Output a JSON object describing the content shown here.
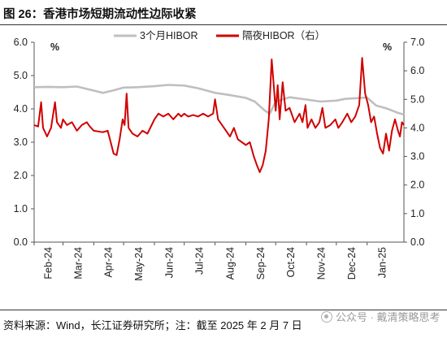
{
  "title": "图 26：香港市场短期流动性边际收紧",
  "source": "资料来源：Wind，长江证券研究所；注：截至 2025 年 2 月 7 日",
  "watermark": "公众号 · 戴清策略思考",
  "chart_data": {
    "type": "line",
    "y_left": {
      "label": "%",
      "min": 0,
      "max": 6,
      "ticks": [
        "0.0",
        "1.0",
        "2.0",
        "3.0",
        "4.0",
        "5.0",
        "6.0"
      ]
    },
    "y_right": {
      "label": "%",
      "min": 0,
      "max": 7,
      "ticks": [
        "0.0",
        "1.0",
        "2.0",
        "3.0",
        "4.0",
        "5.0",
        "6.0",
        "7.0"
      ]
    },
    "x_ticks": [
      "Feb-24",
      "Mar-24",
      "Apr-24",
      "May-24",
      "Jun-24",
      "Jul-24",
      "Aug-24",
      "Sep-24",
      "Oct-24",
      "Nov-24",
      "Dec-24",
      "Jan-25"
    ],
    "grid": false,
    "legend_position": "top",
    "series": [
      {
        "name": "3个月HIBOR",
        "axis": "left",
        "color": "#bfbfbf",
        "points": [
          [
            "2024-02-01",
            4.65
          ],
          [
            "2024-02-15",
            4.66
          ],
          [
            "2024-03-01",
            4.65
          ],
          [
            "2024-03-15",
            4.67
          ],
          [
            "2024-04-01",
            4.55
          ],
          [
            "2024-04-10",
            4.48
          ],
          [
            "2024-04-20",
            4.55
          ],
          [
            "2024-05-01",
            4.64
          ],
          [
            "2024-05-15",
            4.65
          ],
          [
            "2024-06-01",
            4.68
          ],
          [
            "2024-06-15",
            4.72
          ],
          [
            "2024-07-01",
            4.7
          ],
          [
            "2024-07-15",
            4.62
          ],
          [
            "2024-08-01",
            4.48
          ],
          [
            "2024-08-15",
            4.42
          ],
          [
            "2024-09-01",
            4.33
          ],
          [
            "2024-09-10",
            4.22
          ],
          [
            "2024-09-20",
            3.95
          ],
          [
            "2024-09-25",
            3.85
          ],
          [
            "2024-10-01",
            4.22
          ],
          [
            "2024-10-15",
            4.35
          ],
          [
            "2024-11-01",
            4.28
          ],
          [
            "2024-11-15",
            4.22
          ],
          [
            "2024-12-01",
            4.25
          ],
          [
            "2024-12-10",
            4.3
          ],
          [
            "2024-12-20",
            4.32
          ],
          [
            "2025-01-01",
            4.34
          ],
          [
            "2025-01-10",
            4.1
          ],
          [
            "2025-01-20",
            4.02
          ],
          [
            "2025-02-01",
            3.88
          ],
          [
            "2025-02-07",
            3.83
          ]
        ]
      },
      {
        "name": "隔夜HIBOR（右）",
        "axis": "right",
        "color": "#d00000",
        "points": [
          [
            "2024-02-01",
            4.1
          ],
          [
            "2024-02-05",
            4.05
          ],
          [
            "2024-02-08",
            4.9
          ],
          [
            "2024-02-10",
            4.0
          ],
          [
            "2024-02-14",
            3.7
          ],
          [
            "2024-02-18",
            4.0
          ],
          [
            "2024-02-22",
            4.9
          ],
          [
            "2024-02-24",
            4.2
          ],
          [
            "2024-02-28",
            4.0
          ],
          [
            "2024-03-01",
            4.3
          ],
          [
            "2024-03-05",
            4.1
          ],
          [
            "2024-03-10",
            4.2
          ],
          [
            "2024-03-15",
            3.9
          ],
          [
            "2024-03-20",
            4.1
          ],
          [
            "2024-03-25",
            4.2
          ],
          [
            "2024-03-28",
            4.05
          ],
          [
            "2024-04-01",
            3.9
          ],
          [
            "2024-04-10",
            3.85
          ],
          [
            "2024-04-15",
            3.9
          ],
          [
            "2024-04-18",
            3.5
          ],
          [
            "2024-04-21",
            3.1
          ],
          [
            "2024-04-24",
            3.05
          ],
          [
            "2024-04-27",
            3.6
          ],
          [
            "2024-04-30",
            4.3
          ],
          [
            "2024-05-02",
            4.1
          ],
          [
            "2024-05-04",
            5.2
          ],
          [
            "2024-05-06",
            4.0
          ],
          [
            "2024-05-10",
            3.8
          ],
          [
            "2024-05-15",
            3.7
          ],
          [
            "2024-05-20",
            3.9
          ],
          [
            "2024-05-25",
            3.8
          ],
          [
            "2024-06-01",
            4.3
          ],
          [
            "2024-06-05",
            4.5
          ],
          [
            "2024-06-10",
            4.4
          ],
          [
            "2024-06-15",
            4.5
          ],
          [
            "2024-06-20",
            4.3
          ],
          [
            "2024-06-25",
            4.5
          ],
          [
            "2024-06-28",
            4.4
          ],
          [
            "2024-07-01",
            4.5
          ],
          [
            "2024-07-05",
            4.4
          ],
          [
            "2024-07-10",
            4.45
          ],
          [
            "2024-07-15",
            4.4
          ],
          [
            "2024-07-20",
            4.5
          ],
          [
            "2024-07-25",
            4.4
          ],
          [
            "2024-07-30",
            4.5
          ],
          [
            "2024-08-01",
            5.0
          ],
          [
            "2024-08-04",
            4.3
          ],
          [
            "2024-08-08",
            4.1
          ],
          [
            "2024-08-12",
            3.9
          ],
          [
            "2024-08-16",
            3.7
          ],
          [
            "2024-08-20",
            4.0
          ],
          [
            "2024-08-24",
            3.6
          ],
          [
            "2024-08-28",
            3.5
          ],
          [
            "2024-09-01",
            3.4
          ],
          [
            "2024-09-05",
            3.5
          ],
          [
            "2024-09-09",
            3.0
          ],
          [
            "2024-09-12",
            2.7
          ],
          [
            "2024-09-15",
            2.45
          ],
          [
            "2024-09-18",
            2.7
          ],
          [
            "2024-09-21",
            3.2
          ],
          [
            "2024-09-24",
            4.3
          ],
          [
            "2024-09-27",
            6.4
          ],
          [
            "2024-09-29",
            5.5
          ],
          [
            "2024-10-01",
            4.6
          ],
          [
            "2024-10-03",
            5.5
          ],
          [
            "2024-10-05",
            4.3
          ],
          [
            "2024-10-08",
            5.6
          ],
          [
            "2024-10-11",
            4.6
          ],
          [
            "2024-10-15",
            4.7
          ],
          [
            "2024-10-20",
            4.2
          ],
          [
            "2024-10-25",
            4.5
          ],
          [
            "2024-10-28",
            4.2
          ],
          [
            "2024-10-31",
            4.8
          ],
          [
            "2024-11-02",
            4.0
          ],
          [
            "2024-11-06",
            4.3
          ],
          [
            "2024-11-10",
            4.0
          ],
          [
            "2024-11-14",
            4.2
          ],
          [
            "2024-11-17",
            4.7
          ],
          [
            "2024-11-20",
            4.0
          ],
          [
            "2024-11-25",
            4.1
          ],
          [
            "2024-11-30",
            4.3
          ],
          [
            "2024-12-03",
            4.0
          ],
          [
            "2024-12-07",
            4.2
          ],
          [
            "2024-12-12",
            4.5
          ],
          [
            "2024-12-16",
            4.2
          ],
          [
            "2024-12-20",
            4.4
          ],
          [
            "2024-12-24",
            4.8
          ],
          [
            "2024-12-27",
            6.45
          ],
          [
            "2024-12-30",
            5.2
          ],
          [
            "2025-01-02",
            4.8
          ],
          [
            "2025-01-05",
            4.2
          ],
          [
            "2025-01-08",
            4.4
          ],
          [
            "2025-01-11",
            3.8
          ],
          [
            "2025-01-14",
            3.3
          ],
          [
            "2025-01-17",
            3.1
          ],
          [
            "2025-01-20",
            3.8
          ],
          [
            "2025-01-23",
            3.2
          ],
          [
            "2025-01-26",
            3.9
          ],
          [
            "2025-01-29",
            4.3
          ],
          [
            "2025-02-01",
            3.9
          ],
          [
            "2025-02-03",
            3.7
          ],
          [
            "2025-02-05",
            4.2
          ],
          [
            "2025-02-07",
            4.1
          ]
        ]
      }
    ]
  }
}
